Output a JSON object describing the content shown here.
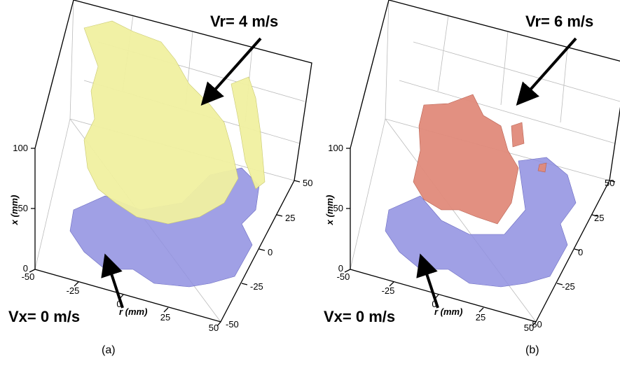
{
  "panels": [
    {
      "caption": "(a)",
      "annotations": {
        "top": "Vr= 4 m/s",
        "bottom": "Vx= 0 m/s"
      },
      "axes": {
        "x_label": "x (mm)",
        "x_ticks": [
          "0",
          "50",
          "100"
        ],
        "r_label": "r (mm)",
        "r_ticks": [
          "-50",
          "-25",
          "0",
          "25",
          "50"
        ],
        "y_ticks": [
          "50",
          "25",
          "0",
          "-25",
          "-50"
        ]
      }
    },
    {
      "caption": "(b)",
      "annotations": {
        "top": "Vr= 6 m/s",
        "bottom": "Vx= 0 m/s"
      },
      "axes": {
        "x_label": "x (mm)",
        "x_ticks": [
          "0",
          "50",
          "100"
        ],
        "r_label": "r (mm)",
        "r_ticks": [
          "-50",
          "-25",
          "0",
          "25",
          "50"
        ],
        "y_ticks": [
          "50",
          "25",
          "0",
          "-25",
          "-50"
        ]
      }
    }
  ]
}
